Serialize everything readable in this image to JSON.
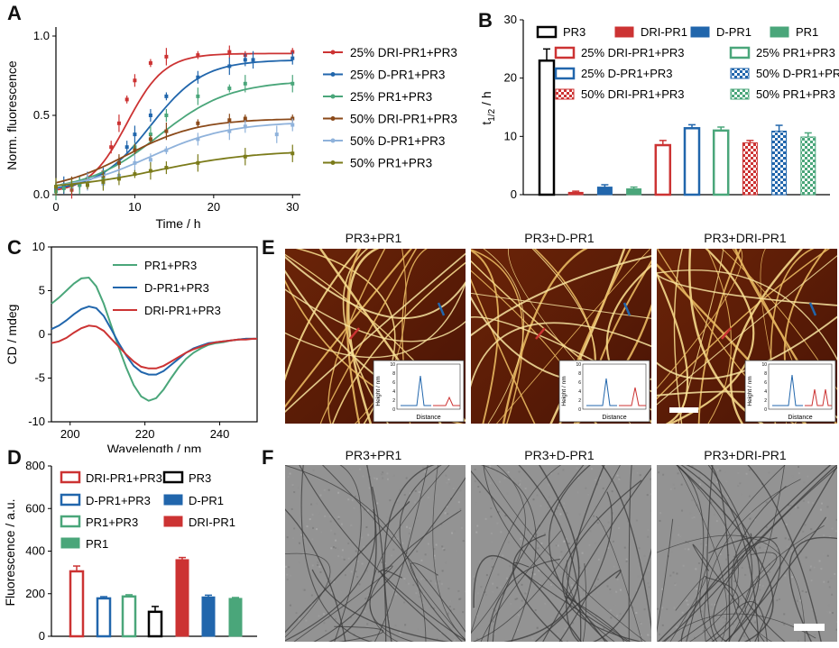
{
  "colors": {
    "red": "#cc3333",
    "blue": "#2166ac",
    "teal": "#4aa67a",
    "brown": "#8b4a1a",
    "lightblue": "#8fb2db",
    "olive": "#7b7b1a",
    "black": "#000000",
    "green": "#4aa67a"
  },
  "panels": {
    "A": "A",
    "B": "B",
    "C": "C",
    "D": "D",
    "E": "E",
    "F": "F"
  },
  "chart_data": [
    {
      "id": "A",
      "type": "scatter",
      "xlabel": "Time / h",
      "ylabel": "Norm. fluorescence",
      "xlim": [
        0,
        31
      ],
      "ylim": [
        0,
        1.0
      ],
      "xticks": [
        "0",
        "10",
        "20",
        "30"
      ],
      "yticks": [
        "0.0",
        "0.5",
        "1.0"
      ],
      "x": [
        0,
        1,
        2,
        3,
        4,
        6,
        7,
        8,
        9,
        10,
        12,
        14,
        18,
        22,
        24,
        25,
        30
      ],
      "series": [
        {
          "name": "25% DRI-PR1+PR3",
          "color": "#cc3333",
          "L": 0.89,
          "k": 0.42,
          "t0": 9.0,
          "b": 0.01,
          "points": [
            [
              0,
              0.03
            ],
            [
              1,
              0.05
            ],
            [
              2,
              0.03
            ],
            [
              3,
              0.06
            ],
            [
              4,
              0.07
            ],
            [
              6,
              0.14
            ],
            [
              7,
              0.3
            ],
            [
              8,
              0.45
            ],
            [
              9,
              0.6
            ],
            [
              10,
              0.72
            ],
            [
              12,
              0.83
            ],
            [
              14,
              0.87
            ],
            [
              18,
              0.88
            ],
            [
              22,
              0.9
            ],
            [
              24,
              0.88
            ],
            [
              30,
              0.9
            ]
          ]
        },
        {
          "name": "25% D-PR1+PR3",
          "color": "#2166ac",
          "L": 0.85,
          "k": 0.3,
          "t0": 12.0,
          "b": 0.02,
          "points": [
            [
              0,
              0.04
            ],
            [
              1,
              0.06
            ],
            [
              2,
              0.05
            ],
            [
              3,
              0.07
            ],
            [
              4,
              0.09
            ],
            [
              6,
              0.13
            ],
            [
              8,
              0.2
            ],
            [
              9,
              0.3
            ],
            [
              10,
              0.38
            ],
            [
              12,
              0.5
            ],
            [
              14,
              0.62
            ],
            [
              18,
              0.74
            ],
            [
              22,
              0.81
            ],
            [
              24,
              0.85
            ],
            [
              25,
              0.85
            ],
            [
              30,
              0.86
            ]
          ]
        },
        {
          "name": "25% PR1+PR3",
          "color": "#4aa67a",
          "L": 0.72,
          "k": 0.22,
          "t0": 13.0,
          "b": 0.02,
          "points": [
            [
              0,
              0.02
            ],
            [
              1,
              0.04
            ],
            [
              2,
              0.07
            ],
            [
              3,
              0.06
            ],
            [
              4,
              0.1
            ],
            [
              6,
              0.1
            ],
            [
              8,
              0.2
            ],
            [
              10,
              0.3
            ],
            [
              12,
              0.38
            ],
            [
              14,
              0.5
            ],
            [
              18,
              0.62
            ],
            [
              22,
              0.67
            ],
            [
              24,
              0.7
            ],
            [
              30,
              0.7
            ]
          ]
        },
        {
          "name": "50% DRI-PR1+PR3",
          "color": "#8b4a1a",
          "L": 0.48,
          "k": 0.22,
          "t0": 9.0,
          "b": 0.02,
          "points": [
            [
              0,
              0.05
            ],
            [
              2,
              0.06
            ],
            [
              4,
              0.09
            ],
            [
              6,
              0.12
            ],
            [
              8,
              0.2
            ],
            [
              10,
              0.28
            ],
            [
              12,
              0.35
            ],
            [
              14,
              0.4
            ],
            [
              18,
              0.45
            ],
            [
              22,
              0.47
            ],
            [
              24,
              0.48
            ],
            [
              30,
              0.48
            ]
          ]
        },
        {
          "name": "50% D-PR1+PR3",
          "color": "#8fb2db",
          "L": 0.46,
          "k": 0.2,
          "t0": 12.0,
          "b": 0.02,
          "points": [
            [
              0,
              0.05
            ],
            [
              2,
              0.05
            ],
            [
              4,
              0.08
            ],
            [
              6,
              0.07
            ],
            [
              8,
              0.12
            ],
            [
              10,
              0.2
            ],
            [
              12,
              0.22
            ],
            [
              14,
              0.28
            ],
            [
              18,
              0.35
            ],
            [
              22,
              0.4
            ],
            [
              24,
              0.43
            ],
            [
              28,
              0.38
            ],
            [
              30,
              0.44
            ]
          ]
        },
        {
          "name": "50% PR1+PR3",
          "color": "#7b7b1a",
          "L": 0.28,
          "k": 0.16,
          "t0": 13.0,
          "b": 0.03,
          "points": [
            [
              0,
              0.05
            ],
            [
              2,
              0.06
            ],
            [
              4,
              0.06
            ],
            [
              6,
              0.08
            ],
            [
              8,
              0.1
            ],
            [
              10,
              0.13
            ],
            [
              12,
              0.15
            ],
            [
              14,
              0.17
            ],
            [
              18,
              0.2
            ],
            [
              24,
              0.24
            ],
            [
              30,
              0.26
            ]
          ]
        }
      ]
    },
    {
      "id": "B",
      "type": "bar",
      "ylabel": "t",
      "ylabel_sub": "1/2",
      "ylabel_tail": " / h",
      "ylim": [
        0,
        30
      ],
      "yticks": [
        "0",
        "10",
        "20",
        "30"
      ],
      "bars": [
        {
          "name": "PR3",
          "value": 23,
          "err": 2.0,
          "color": "#000000",
          "style": "open"
        },
        {
          "name": "DRI-PR1",
          "value": 0.4,
          "err": 0.2,
          "color": "#cc3333",
          "style": "solid"
        },
        {
          "name": "D-PR1",
          "value": 1.3,
          "err": 0.4,
          "color": "#2166ac",
          "style": "solid"
        },
        {
          "name": "PR1",
          "value": 1.0,
          "err": 0.3,
          "color": "#4aa67a",
          "style": "solid"
        },
        {
          "name": "25% DRI-PR1+PR3",
          "value": 8.5,
          "err": 0.8,
          "color": "#cc3333",
          "style": "open"
        },
        {
          "name": "25% D-PR1+PR3",
          "value": 11.4,
          "err": 0.6,
          "color": "#2166ac",
          "style": "open"
        },
        {
          "name": "25% PR1+PR3",
          "value": 11.0,
          "err": 0.6,
          "color": "#4aa67a",
          "style": "open"
        },
        {
          "name": "50% DRI-PR1+PR3",
          "value": 8.9,
          "err": 0.4,
          "color": "#cc3333",
          "style": "checker"
        },
        {
          "name": "50% D-PR1+PR3",
          "value": 10.9,
          "err": 1.0,
          "color": "#2166ac",
          "style": "checker"
        },
        {
          "name": "50% PR1+PR3",
          "value": 9.9,
          "err": 0.7,
          "color": "#4aa67a",
          "style": "checker"
        }
      ]
    },
    {
      "id": "C",
      "type": "line",
      "xlabel": "Wavelength / nm",
      "ylabel": "CD / mdeg",
      "xlim": [
        195,
        250
      ],
      "ylim": [
        -10,
        10
      ],
      "xticks": [
        "200",
        "220",
        "240"
      ],
      "yticks": [
        "-10",
        "-5",
        "0",
        "5",
        "10"
      ],
      "x": [
        195,
        197,
        199,
        201,
        203,
        205,
        207,
        209,
        211,
        213,
        215,
        217,
        219,
        221,
        223,
        225,
        227,
        229,
        231,
        233,
        235,
        237,
        239,
        241,
        243,
        245,
        247,
        249,
        250
      ],
      "series": [
        {
          "name": "PR1+PR3",
          "color": "#4aa67a",
          "values": [
            3.5,
            4.2,
            5.0,
            5.8,
            6.4,
            6.5,
            5.5,
            3.5,
            1.0,
            -1.5,
            -3.8,
            -5.8,
            -7.1,
            -7.6,
            -7.3,
            -6.3,
            -5.0,
            -3.8,
            -2.8,
            -2.1,
            -1.6,
            -1.2,
            -1.0,
            -0.9,
            -0.7,
            -0.6,
            -0.5,
            -0.5,
            -0.5
          ]
        },
        {
          "name": "D-PR1+PR3",
          "color": "#2166ac",
          "values": [
            0.6,
            1.0,
            1.6,
            2.3,
            2.9,
            3.2,
            3.0,
            2.1,
            0.6,
            -1.0,
            -2.4,
            -3.6,
            -4.3,
            -4.6,
            -4.6,
            -4.2,
            -3.5,
            -2.8,
            -2.1,
            -1.6,
            -1.3,
            -1.0,
            -0.9,
            -0.8,
            -0.7,
            -0.6,
            -0.5,
            -0.5,
            -0.5
          ]
        },
        {
          "name": "DRI-PR1+PR3",
          "color": "#cc3333",
          "values": [
            -1.0,
            -0.8,
            -0.4,
            0.2,
            0.7,
            1.0,
            0.9,
            0.4,
            -0.5,
            -1.4,
            -2.3,
            -3.1,
            -3.7,
            -3.9,
            -3.9,
            -3.6,
            -3.1,
            -2.6,
            -2.1,
            -1.7,
            -1.4,
            -1.1,
            -0.9,
            -0.8,
            -0.7,
            -0.6,
            -0.6,
            -0.5,
            -0.5
          ]
        }
      ]
    },
    {
      "id": "D",
      "type": "bar",
      "ylabel": "Fluorescence / a.u.",
      "ylim": [
        0,
        800
      ],
      "yticks": [
        "0",
        "200",
        "400",
        "600",
        "800"
      ],
      "bars": [
        {
          "name": "DRI-PR1+PR3",
          "value": 305,
          "err": 25,
          "color": "#cc3333",
          "style": "open"
        },
        {
          "name": "D-PR1+PR3",
          "value": 178,
          "err": 8,
          "color": "#2166ac",
          "style": "open"
        },
        {
          "name": "PR1+PR3",
          "value": 187,
          "err": 8,
          "color": "#4aa67a",
          "style": "open"
        },
        {
          "name": "PR3",
          "value": 115,
          "err": 25,
          "color": "#000000",
          "style": "open"
        },
        {
          "name": "DRI-PR1",
          "value": 360,
          "err": 10,
          "color": "#cc3333",
          "style": "solid"
        },
        {
          "name": "D-PR1",
          "value": 185,
          "err": 8,
          "color": "#2166ac",
          "style": "solid"
        },
        {
          "name": "PR1",
          "value": 178,
          "err": 4,
          "color": "#4aa67a",
          "style": "solid"
        }
      ]
    }
  ],
  "panel_e": {
    "titles": [
      "PR3+PR1",
      "PR3+D-PR1",
      "PR3+DRI-PR1"
    ],
    "inset_ylabel": "Height / nm",
    "inset_xlabel": "Distance",
    "inset_yticks": [
      "0",
      "2",
      "4",
      "6",
      "8",
      "10"
    ]
  },
  "panel_f": {
    "titles": [
      "PR3+PR1",
      "PR3+D-PR1",
      "PR3+DRI-PR1"
    ]
  }
}
